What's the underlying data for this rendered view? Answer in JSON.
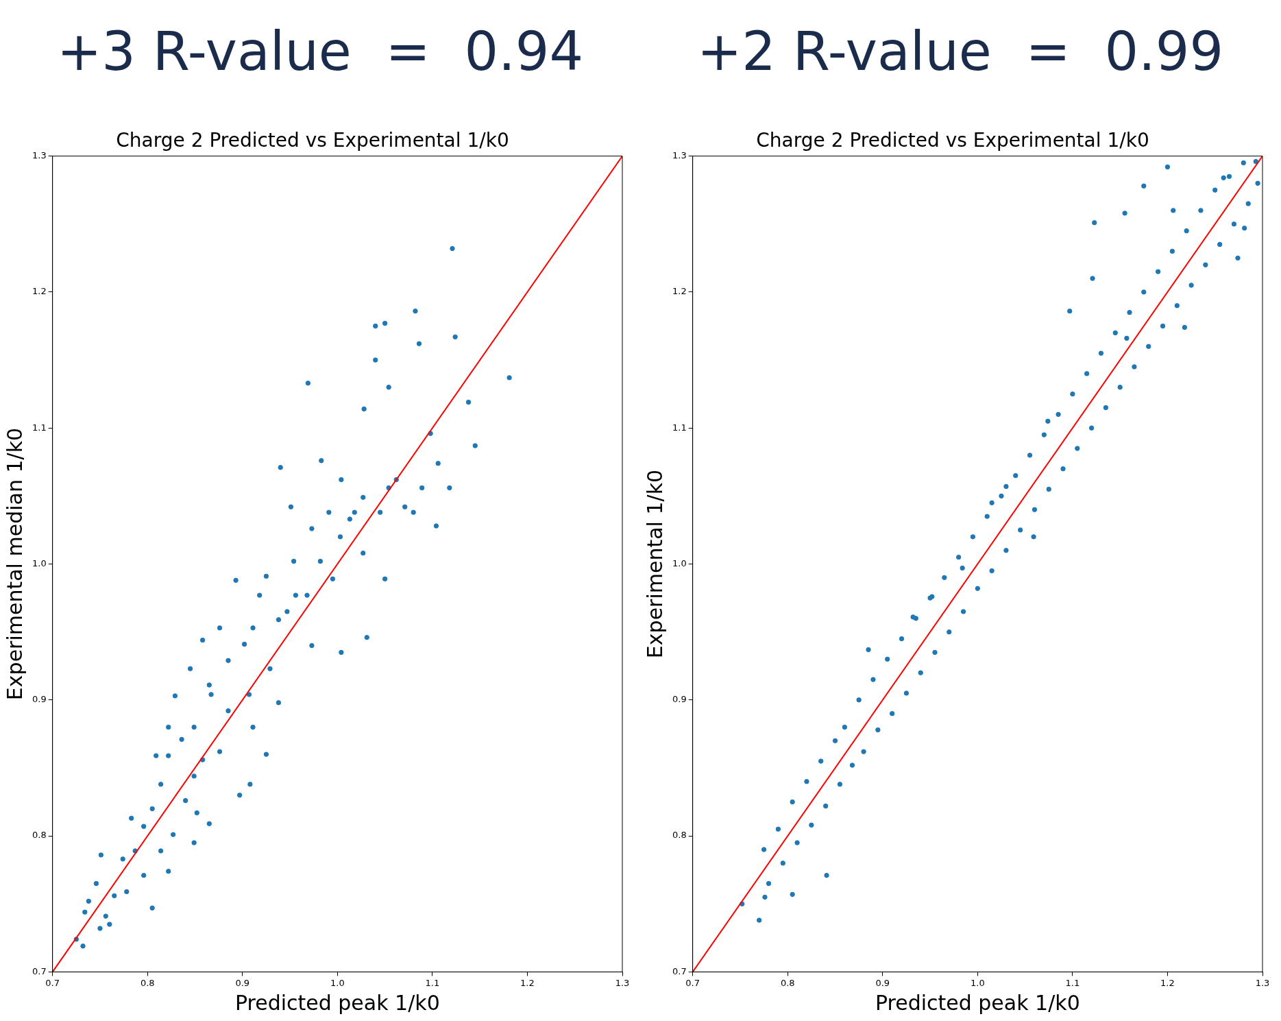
{
  "chart_data": [
    {
      "type": "scatter",
      "annotations": [
        "+3 R-value  =  0.94"
      ],
      "title": "Charge 2 Predicted vs Experimental 1/k0",
      "xlabel": "Predicted peak 1/k0",
      "ylabel": "Experimental median 1/k0",
      "xlim": [
        0.7,
        1.3
      ],
      "ylim": [
        0.7,
        1.3
      ],
      "xticks": [
        0.7,
        0.8,
        0.9,
        {
          "value": 1,
          "label": "1.0"
        },
        1.1,
        1.2,
        1.3
      ],
      "yticks": [
        0.7,
        0.8,
        0.9,
        {
          "value": 1,
          "label": "1.0"
        },
        1.1,
        1.2,
        1.3
      ],
      "grid": false,
      "series": [
        {
          "marker": "circle",
          "color": "#1f77b4",
          "x": [
            1.121,
            1.181,
            1.082,
            1.124,
            1.05,
            1.04,
            0.969,
            1.138,
            1.145,
            1.098,
            1.118,
            1.104,
            1.071,
            1.028,
            1.054,
            1.04,
            1.086,
            0.94,
            0.951,
            0.983,
            1.004,
            1.027,
            1.013,
            1.003,
            1.027,
            1.05,
            0.995,
            1.004,
            1.031,
            0.973,
            0.954,
            0.968,
            0.947,
            0.925,
            0.893,
            0.911,
            0.929,
            0.938,
            0.907,
            0.885,
            0.858,
            0.867,
            0.885,
            0.911,
            0.925,
            0.876,
            0.849,
            0.829,
            0.836,
            0.822,
            0.809,
            0.858,
            0.908,
            0.897,
            0.849,
            0.814,
            0.84,
            0.805,
            0.865,
            0.852,
            0.827,
            0.796,
            0.783,
            0.787,
            0.774,
            0.814,
            0.822,
            0.796,
            0.778,
            0.805,
            0.765,
            0.751,
            0.746,
            0.738,
            0.734,
            0.756,
            0.75,
            0.725,
            0.732,
            0.76,
            0.849,
            0.865,
            0.876,
            0.902,
            0.938,
            0.956,
            0.982,
            0.973,
            0.991,
            1.018,
            1.054,
            1.045,
            1.062,
            1.08,
            1.089,
            1.106,
            0.918,
            0.845,
            0.822
          ],
          "values": [
            1.232,
            1.137,
            1.186,
            1.167,
            1.177,
            1.175,
            1.133,
            1.119,
            1.087,
            1.096,
            1.056,
            1.028,
            1.042,
            1.114,
            1.13,
            1.15,
            1.162,
            1.071,
            1.042,
            1.076,
            1.062,
            1.049,
            1.033,
            1.02,
            1.008,
            0.989,
            0.989,
            0.935,
            0.946,
            0.94,
            1.002,
            0.977,
            0.965,
            0.991,
            0.988,
            0.953,
            0.923,
            0.898,
            0.904,
            0.929,
            0.944,
            0.904,
            0.892,
            0.88,
            0.86,
            0.862,
            0.88,
            0.903,
            0.871,
            0.859,
            0.859,
            0.856,
            0.838,
            0.83,
            0.844,
            0.838,
            0.826,
            0.82,
            0.809,
            0.817,
            0.801,
            0.807,
            0.813,
            0.789,
            0.783,
            0.789,
            0.774,
            0.771,
            0.759,
            0.747,
            0.756,
            0.786,
            0.765,
            0.752,
            0.744,
            0.741,
            0.732,
            0.724,
            0.719,
            0.735,
            0.795,
            0.911,
            0.953,
            0.941,
            0.959,
            0.977,
            1.002,
            1.026,
            1.038,
            1.038,
            1.056,
            1.038,
            1.062,
            1.038,
            1.056,
            1.074,
            0.977,
            0.923,
            0.88
          ]
        },
        {
          "type": "line",
          "color": "#ff0000",
          "x": [
            0.7,
            1.3
          ],
          "values": [
            0.7,
            1.3
          ]
        }
      ]
    },
    {
      "type": "scatter",
      "annotations": [
        "+2 R-value  =  0.99"
      ],
      "title": "Charge 2 Predicted vs Experimental 1/k0",
      "xlabel": "Predicted peak 1/k0",
      "ylabel": "Experimental 1/k0",
      "xlim": [
        0.7,
        1.3
      ],
      "ylim": [
        0.7,
        1.3
      ],
      "xticks": [
        0.7,
        0.8,
        0.9,
        {
          "value": 1,
          "label": "1.0"
        },
        1.1,
        1.2,
        1.3
      ],
      "yticks": [
        0.7,
        0.8,
        0.9,
        {
          "value": 1,
          "label": "1.0"
        },
        1.1,
        1.2,
        1.3
      ],
      "grid": false,
      "series": [
        {
          "marker": "circle",
          "color": "#1f77b4",
          "x": [
            1.2,
            1.175,
            1.123,
            1.155,
            1.097,
            1.121,
            1.157,
            1.074,
            1.059,
            0.952,
            0.841,
            0.752,
            0.77,
            0.776,
            0.805,
            0.885,
            1.03,
            1.281,
            1.274,
            1.218,
            1.206,
            1.259,
            1.293,
            1.015,
            0.984,
            0.932,
            0.775,
            0.78,
            0.79,
            0.795,
            0.805,
            0.81,
            0.82,
            0.825,
            0.835,
            0.84,
            0.85,
            0.855,
            0.86,
            0.868,
            0.875,
            0.88,
            0.89,
            0.895,
            0.905,
            0.91,
            0.92,
            0.925,
            0.935,
            0.94,
            0.95,
            0.955,
            0.965,
            0.97,
            0.98,
            0.985,
            0.995,
            1.0,
            1.01,
            1.015,
            1.025,
            1.03,
            1.04,
            1.045,
            1.055,
            1.06,
            1.07,
            1.075,
            1.085,
            1.09,
            1.1,
            1.105,
            1.115,
            1.12,
            1.13,
            1.135,
            1.145,
            1.15,
            1.16,
            1.165,
            1.175,
            1.18,
            1.19,
            1.195,
            1.205,
            1.21,
            1.22,
            1.225,
            1.235,
            1.24,
            1.25,
            1.255,
            1.265,
            1.27,
            1.28,
            1.285,
            1.295
          ],
          "values": [
            1.292,
            1.278,
            1.251,
            1.258,
            1.186,
            1.21,
            1.166,
            1.105,
            1.02,
            0.976,
            0.771,
            0.75,
            0.738,
            0.755,
            0.757,
            0.937,
            1.057,
            1.247,
            1.225,
            1.174,
            1.26,
            1.284,
            1.296,
            1.045,
            0.997,
            0.961,
            0.79,
            0.765,
            0.805,
            0.78,
            0.825,
            0.795,
            0.84,
            0.808,
            0.855,
            0.822,
            0.87,
            0.838,
            0.88,
            0.852,
            0.9,
            0.862,
            0.915,
            0.878,
            0.93,
            0.89,
            0.945,
            0.905,
            0.96,
            0.92,
            0.975,
            0.935,
            0.99,
            0.95,
            1.005,
            0.965,
            1.02,
            0.982,
            1.035,
            0.995,
            1.05,
            1.01,
            1.065,
            1.025,
            1.08,
            1.04,
            1.095,
            1.055,
            1.11,
            1.07,
            1.125,
            1.085,
            1.14,
            1.1,
            1.155,
            1.115,
            1.17,
            1.13,
            1.185,
            1.145,
            1.2,
            1.16,
            1.215,
            1.175,
            1.23,
            1.19,
            1.245,
            1.205,
            1.26,
            1.22,
            1.275,
            1.235,
            1.285,
            1.25,
            1.295,
            1.265,
            1.28
          ]
        },
        {
          "type": "line",
          "color": "#ff0000",
          "x": [
            0.7,
            1.3
          ],
          "values": [
            0.7,
            1.3
          ]
        }
      ]
    }
  ]
}
